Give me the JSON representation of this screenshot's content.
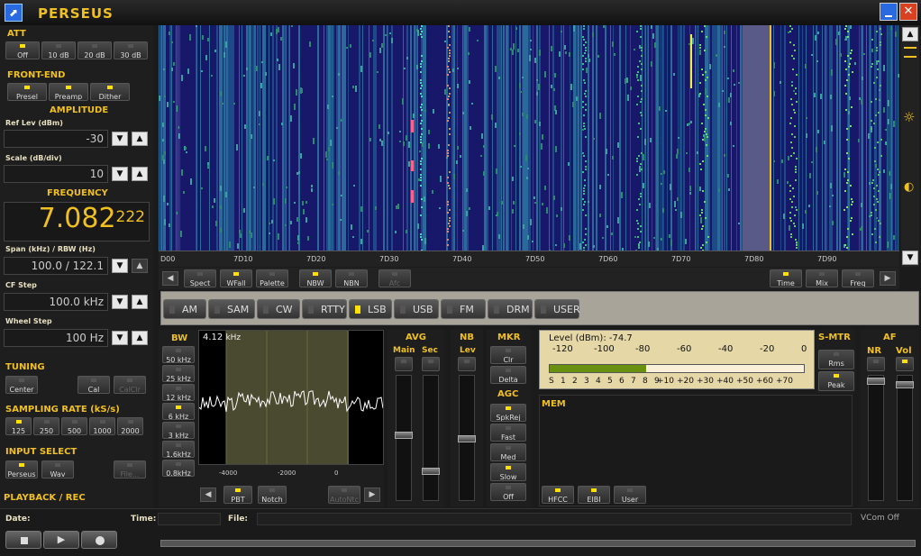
{
  "app": {
    "title": "PERSEUS"
  },
  "att": {
    "title": "ATT",
    "buttons": [
      "Off",
      "10 dB",
      "20 dB",
      "30 dB"
    ]
  },
  "frontend": {
    "title": "FRONT-END",
    "buttons": [
      "Presel",
      "Preamp",
      "Dither"
    ]
  },
  "amplitude": {
    "title": "AMPLITUDE",
    "ref_label": "Ref Lev (dBm)",
    "ref_value": "-30",
    "scale_label": "Scale (dB/div)",
    "scale_value": "10"
  },
  "frequency": {
    "title": "FREQUENCY",
    "main": "7.082",
    "sub": "222",
    "span_label": "Span (kHz) / RBW (Hz)",
    "span_value": "100.0 / 122.1",
    "cf_label": "CF Step",
    "cf_value": "100.0 kHz",
    "wheel_label": "Wheel Step",
    "wheel_value": "100 Hz"
  },
  "tuning": {
    "title": "TUNING",
    "buttons": [
      "Center",
      "Cal",
      "CalClr"
    ]
  },
  "sampling": {
    "title": "SAMPLING RATE (kS/s)",
    "buttons": [
      "125",
      "250",
      "500",
      "1000",
      "2000"
    ]
  },
  "input": {
    "title": "INPUT SELECT",
    "buttons": [
      "Perseus",
      "Wav",
      "File..."
    ]
  },
  "playback": {
    "title": "PLAYBACK / REC",
    "date_label": "Date:",
    "time_label": "Time:",
    "file_label": "File:",
    "vcom": "VCom Off"
  },
  "waterfall": {
    "axis": [
      "D00",
      "7D10",
      "7D20",
      "7D30",
      "7D40",
      "7D50",
      "7D60",
      "7D70",
      "7D80",
      "7D90"
    ]
  },
  "spectrum_controls": {
    "left": [
      "Spect",
      "WFall",
      "Palette",
      "NBW",
      "NBN",
      "Afc"
    ],
    "right": [
      "Time",
      "Mix",
      "Freq"
    ]
  },
  "modes": {
    "items": [
      "AM",
      "SAM",
      "CW",
      "RTTY",
      "LSB",
      "USB",
      "FM",
      "DRM",
      "USER"
    ],
    "active": "LSB"
  },
  "bw": {
    "title": "BW",
    "items": [
      "50 kHz",
      "25 kHz",
      "12 kHz",
      "6 kHz",
      "3 kHz",
      "1.6kHz",
      "0.8kHz"
    ],
    "readout": "4.12",
    "unit": "kHz",
    "axis": [
      "-4000",
      "-2000",
      "0"
    ],
    "buttons": [
      "PBT",
      "Notch",
      "AutoNtc"
    ]
  },
  "avg": {
    "title": "AVG",
    "main": "Main",
    "sec": "Sec"
  },
  "nb": {
    "title": "NB",
    "lev": "Lev"
  },
  "mkr": {
    "title": "MKR",
    "buttons": [
      "Clr",
      "Delta"
    ]
  },
  "agc": {
    "title": "AGC",
    "buttons": [
      "SpkRej",
      "Fast",
      "Med",
      "Slow",
      "Off"
    ]
  },
  "level": {
    "label": "Level (dBm): -74.7",
    "top": [
      "-120",
      "-100",
      "-80",
      "-60",
      "-40",
      "-20",
      "0"
    ],
    "bottom": [
      "S",
      "1",
      "2",
      "3",
      "4",
      "5",
      "6",
      "7",
      "8",
      "9",
      "+10",
      "+20",
      "+30",
      "+40",
      "+50",
      "+60",
      "+70"
    ],
    "fill": 0.38
  },
  "smtr": {
    "title": "S-MTR",
    "buttons": [
      "Rms",
      "Peak"
    ]
  },
  "af": {
    "title": "AF",
    "nr": "NR",
    "vol": "Vol"
  },
  "mem": {
    "title": "MEM",
    "buttons": [
      "HFCC",
      "EIBI",
      "User"
    ]
  },
  "colors": {
    "accent": "#f0c020",
    "led": "#ffe000",
    "waterfall_bg": "#1a1a6a"
  }
}
